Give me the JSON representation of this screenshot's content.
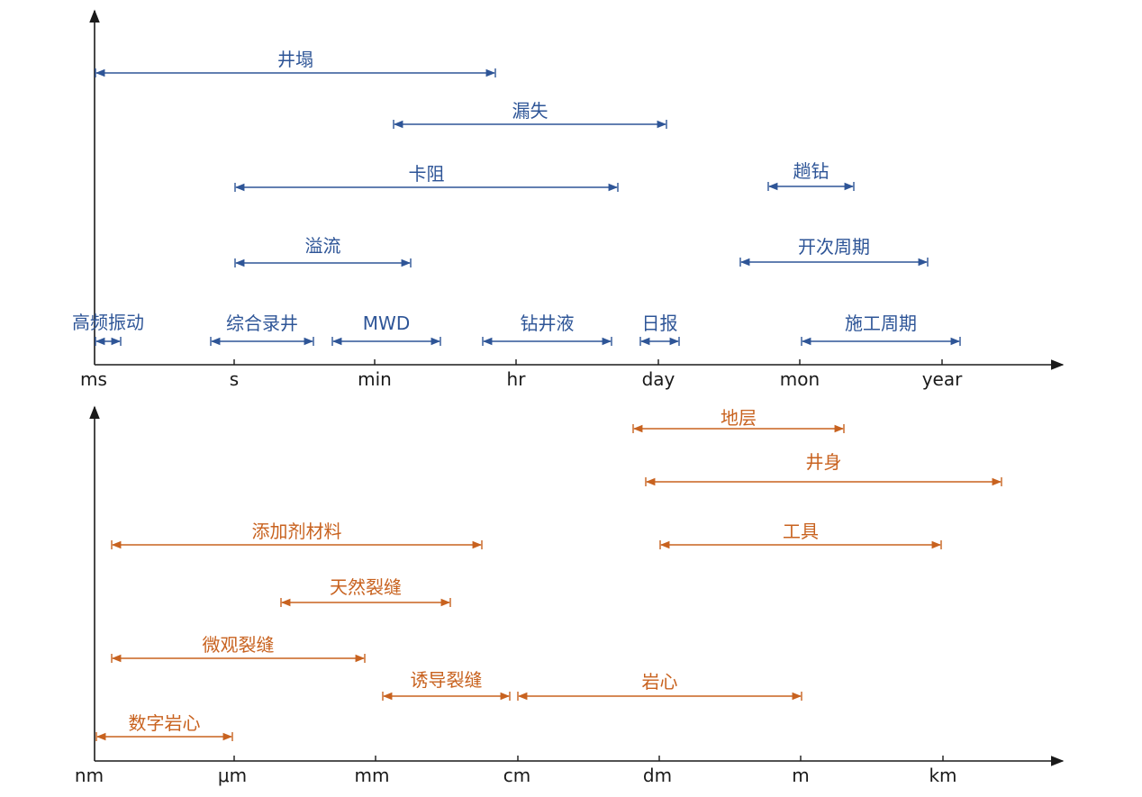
{
  "time_panel": {
    "color": "#2e5597",
    "ticks": [
      "ms",
      "s",
      "min",
      "hr",
      "day",
      "mon",
      "year"
    ],
    "ranges": [
      {
        "label": "井塌",
        "from": "ms",
        "to": "hr-"
      },
      {
        "label": "漏失",
        "from": "min+",
        "to": "day+"
      },
      {
        "label": "卡阻",
        "from": "s",
        "to": "day-"
      },
      {
        "label": "趟钻",
        "from": "mon-",
        "to": "mon+"
      },
      {
        "label": "溢流",
        "from": "s",
        "to": "min+"
      },
      {
        "label": "开次周期",
        "from": "mon--",
        "to": "year-"
      },
      {
        "label": "高频振动",
        "from": "ms",
        "to": "ms+"
      },
      {
        "label": "综合录井",
        "from": "s-",
        "to": "min-"
      },
      {
        "label": "MWD",
        "from": "min-",
        "to": "hr-"
      },
      {
        "label": "钻井液",
        "from": "hr-",
        "to": "day-"
      },
      {
        "label": "日报",
        "from": "day-",
        "to": "day+"
      },
      {
        "label": "施工周期",
        "from": "mon",
        "to": "year+"
      }
    ]
  },
  "space_panel": {
    "color": "#c8621f",
    "ticks": [
      "nm",
      "μm",
      "mm",
      "cm",
      "dm",
      "m",
      "km"
    ],
    "ranges": [
      {
        "label": "地层",
        "from": "dm-",
        "to": "m+"
      },
      {
        "label": "井身",
        "from": "dm-",
        "to": "km+"
      },
      {
        "label": "添加剂材料",
        "from": "nm+",
        "to": "cm-"
      },
      {
        "label": "工具",
        "from": "dm",
        "to": "km"
      },
      {
        "label": "天然裂缝",
        "from": "μm+",
        "to": "cm-"
      },
      {
        "label": "微观裂缝",
        "from": "nm+",
        "to": "mm-"
      },
      {
        "label": "诱导裂缝",
        "from": "mm",
        "to": "cm-"
      },
      {
        "label": "岩心",
        "from": "cm",
        "to": "m"
      },
      {
        "label": "数字岩心",
        "from": "nm",
        "to": "μm"
      }
    ]
  }
}
